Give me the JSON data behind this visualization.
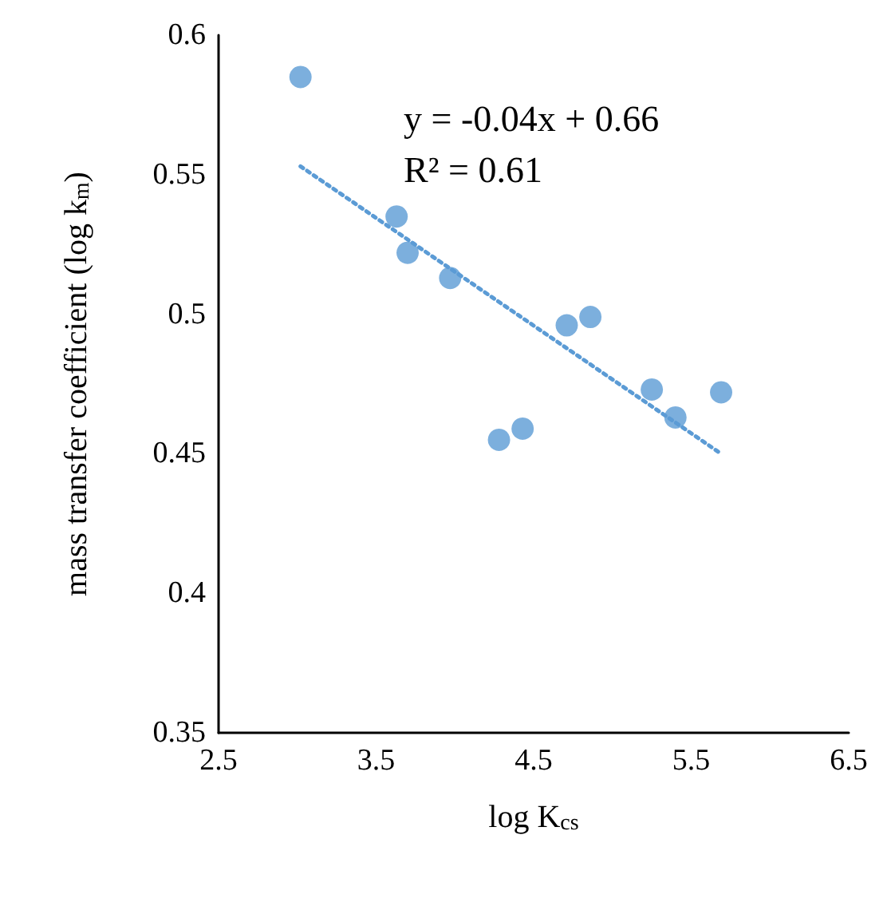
{
  "chart_data": {
    "type": "scatter",
    "xlabel": "log K$_{cs}$",
    "ylabel": "mass transfer coefficient (log k$_{m}$)",
    "annotations": [
      "y = -0.04x + 0.66",
      "R² = 0.61"
    ],
    "xlim": [
      2.5,
      6.5
    ],
    "xticks": [
      2.5,
      3.5,
      4.5,
      5.5,
      6.5
    ],
    "ylim": [
      0.35,
      0.6
    ],
    "yticks": [
      0.35,
      0.4,
      0.45,
      0.5,
      0.55,
      0.6
    ],
    "grid": false,
    "marker": "circle",
    "series": [
      {
        "color": "#5b9bd5",
        "x": [
          3.02,
          3.63,
          3.7,
          3.97,
          4.71,
          4.86,
          4.28,
          4.43,
          5.25,
          5.4,
          5.69
        ],
        "values": [
          0.585,
          0.535,
          0.522,
          0.513,
          0.496,
          0.499,
          0.455,
          0.459,
          0.473,
          0.463,
          0.472
        ]
      },
      {
        "type": "line",
        "color": "#5b9bd5",
        "line_style": "dotted",
        "marker": "none",
        "x": [
          3.02,
          5.69
        ],
        "values": [
          0.553,
          0.45
        ]
      }
    ]
  }
}
